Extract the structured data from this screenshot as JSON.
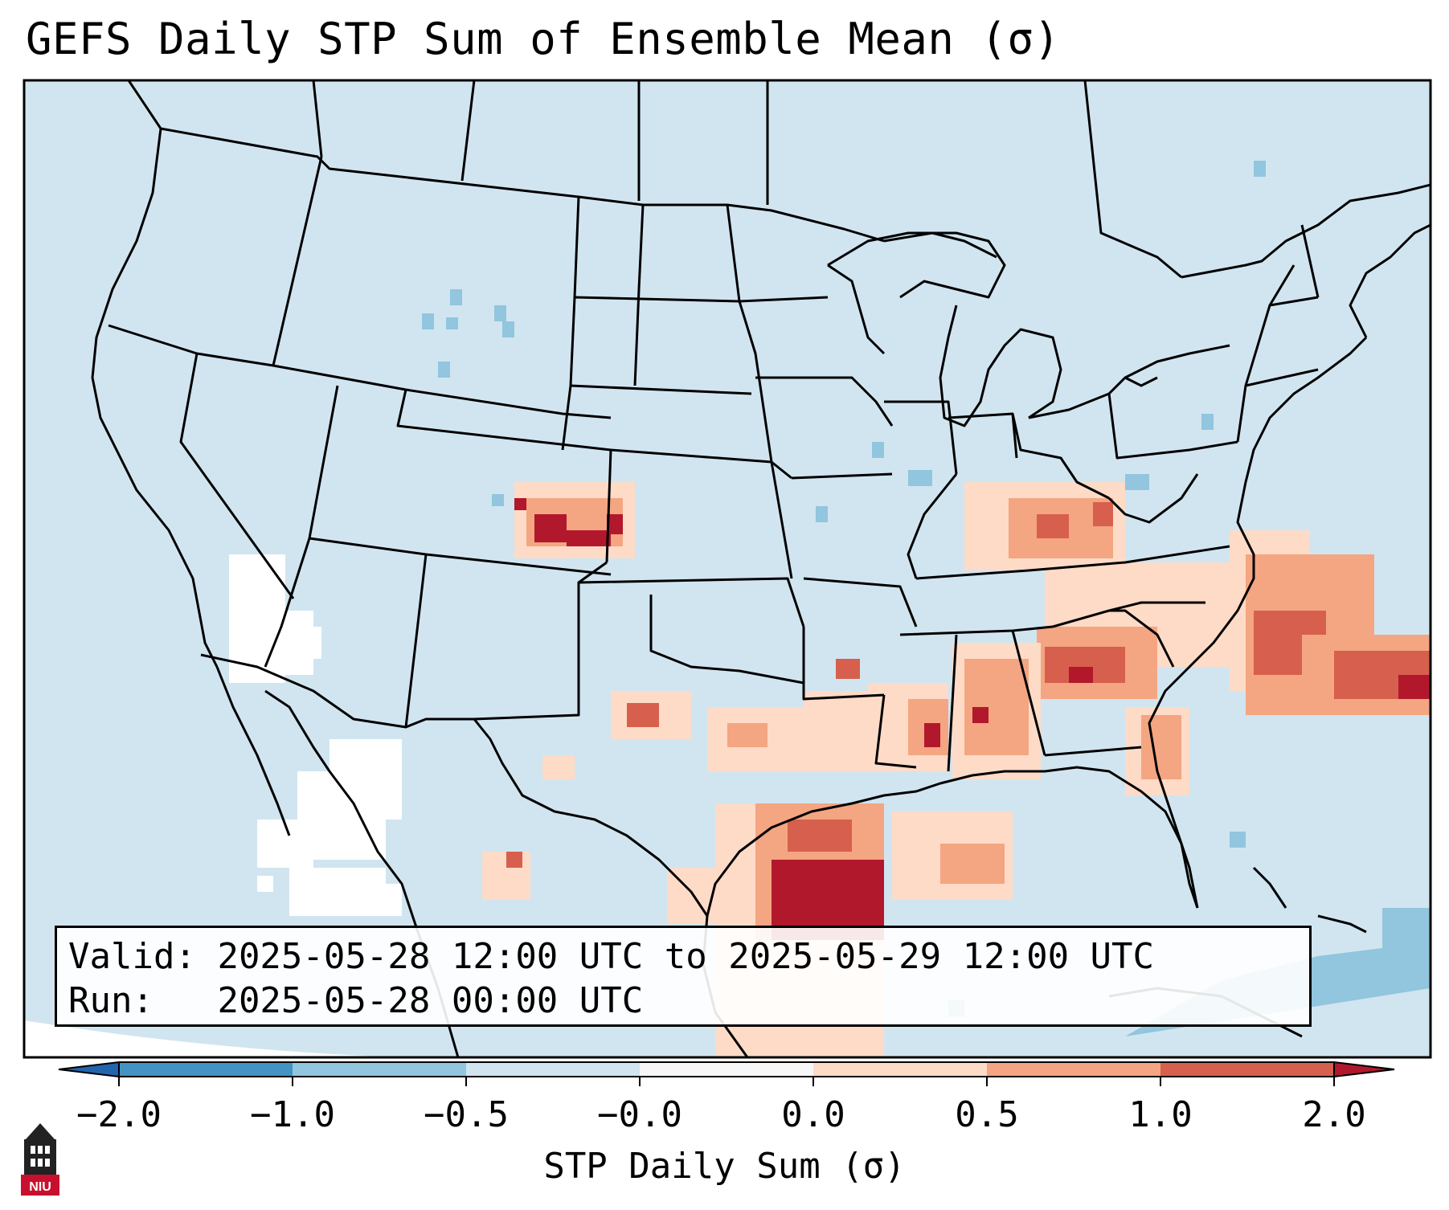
{
  "title": "GEFS Daily STP Sum of Ensemble Mean (σ)",
  "info": {
    "valid_label": "Valid:",
    "valid_value": "2025-05-28 12:00 UTC to 2025-05-29 12:00 UTC",
    "run_label": "Run:",
    "run_value": "2025-05-28 00:00 UTC"
  },
  "colorbar": {
    "label": "STP Daily Sum (σ)",
    "ticks": [
      "−2.0",
      "−1.0",
      "−0.5",
      "−0.0",
      "0.0",
      "0.5",
      "1.0",
      "2.0"
    ],
    "colors": [
      "#2166ac",
      "#4393c3",
      "#92c5de",
      "#d1e5f0",
      "#f7f7f7",
      "#fddbc7",
      "#f4a582",
      "#d6604d",
      "#b2182b"
    ],
    "under_color": "#2166ac",
    "over_color": "#b2182b"
  },
  "map": {
    "background_color": "#d1e5f0",
    "ocean_color": "#d1e5f0",
    "lines_color": "#000000",
    "extent": "CONUS"
  },
  "logo": {
    "text": "NIU"
  }
}
